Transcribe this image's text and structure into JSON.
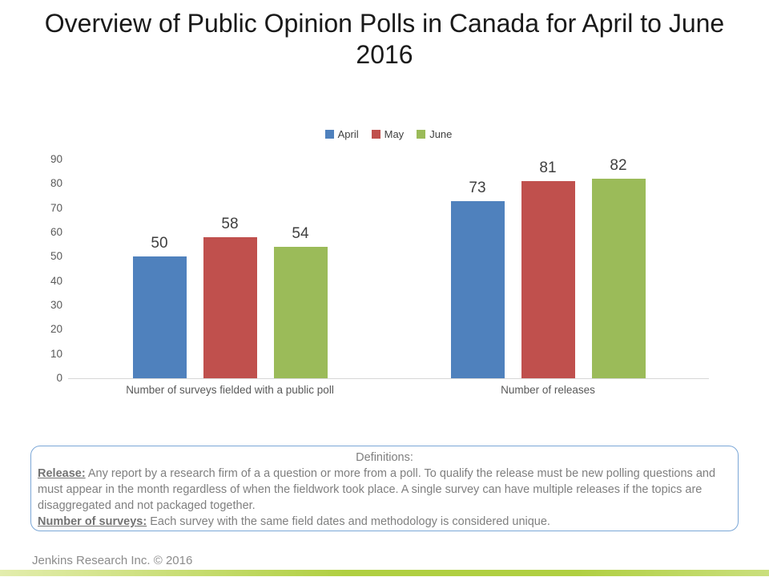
{
  "title": "Overview of Public Opinion Polls in Canada for April to June 2016",
  "chart_data": {
    "type": "bar",
    "title": "",
    "categories": [
      "Number of surveys fielded with a public poll",
      "Number of releases"
    ],
    "series": [
      {
        "name": "April",
        "color": "#4F81BD",
        "values": [
          50,
          73
        ]
      },
      {
        "name": "May",
        "color": "#C0504D",
        "values": [
          58,
          81
        ]
      },
      {
        "name": "June",
        "color": "#9BBB59",
        "values": [
          54,
          82
        ]
      }
    ],
    "ylim": [
      0,
      90
    ],
    "yticks": [
      0,
      10,
      20,
      30,
      40,
      50,
      60,
      70,
      80,
      90
    ],
    "xlabel": "",
    "ylabel": "",
    "grid": false,
    "legend_position": "top-center",
    "data_labels": true
  },
  "definitions": {
    "heading": "Definitions:",
    "items": [
      {
        "term": "Release:",
        "text": " Any report by a research firm of a a question or more from a poll. To qualify the release must be new polling questions and must appear in the month regardless of when the fieldwork took place. A single survey can have multiple releases if the topics are disaggregated and not packaged together."
      },
      {
        "term": "Number of surveys:",
        "text": " Each survey with the same field dates and methodology is considered unique."
      }
    ]
  },
  "footer": {
    "credit": "Jenkins Research Inc. © 2016"
  },
  "colors": {
    "april": "#4F81BD",
    "may": "#C0504D",
    "june": "#9BBB59",
    "axis_line": "#d6d6d6",
    "tick_text": "#595959",
    "data_label_text": "#3f3f3f",
    "box_border": "#7ba7d7",
    "box_text": "#7f7f7f",
    "accent_bar_light": "#e3edad",
    "accent_bar_mid": "#b0cf41",
    "accent_bar_end": "#cadf7d"
  }
}
